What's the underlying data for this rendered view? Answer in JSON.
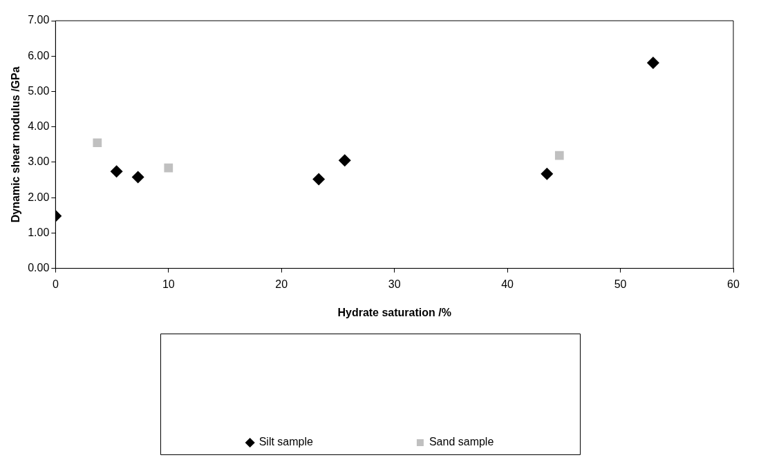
{
  "chart_data": {
    "type": "scatter",
    "xlabel": "Hydrate saturation /%",
    "ylabel": "Dynamic shear modulus /GPa",
    "xlim": [
      0,
      60
    ],
    "xticks": [
      0,
      10,
      20,
      30,
      40,
      50,
      60
    ],
    "ylim": [
      0,
      7
    ],
    "yticks": [
      {
        "value": 0,
        "label": "0.00"
      },
      {
        "value": 1,
        "label": "1.00"
      },
      {
        "value": 2,
        "label": "2.00"
      },
      {
        "value": 3,
        "label": "3.00"
      },
      {
        "value": 4,
        "label": "4.00"
      },
      {
        "value": 5,
        "label": "5.00"
      },
      {
        "value": 6,
        "label": "6.00"
      },
      {
        "value": 7,
        "label": "7.00"
      }
    ],
    "grid": false,
    "legend": "bottom",
    "series": [
      {
        "name": "Silt sample",
        "color": "#000000",
        "marker": "diamond",
        "x": [
          0,
          5.4,
          7.3,
          23.3,
          25.6,
          43.5,
          52.9
        ],
        "values": [
          1.48,
          2.74,
          2.58,
          2.52,
          3.05,
          2.67,
          5.81
        ]
      },
      {
        "name": "Sand sample",
        "color": "#c0c0c0",
        "marker": "square",
        "x": [
          3.7,
          10.0,
          44.6
        ],
        "values": [
          3.55,
          2.84,
          3.19
        ]
      }
    ]
  }
}
